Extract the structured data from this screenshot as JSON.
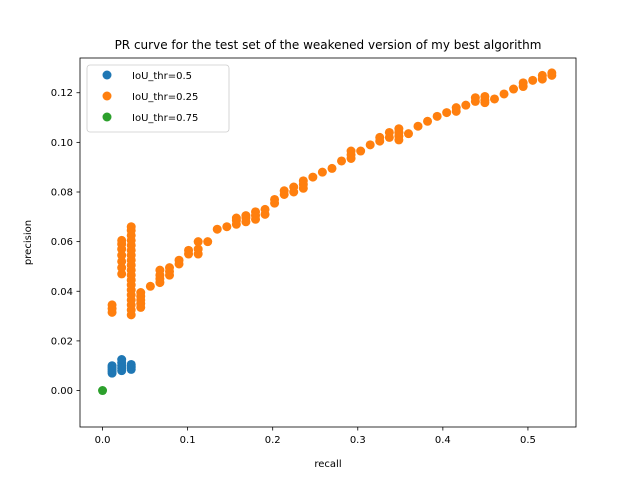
{
  "chart_data": {
    "type": "scatter",
    "title": "PR curve for the test set of the weakened version of my best algorithm",
    "xlabel": "recall",
    "ylabel": "precision",
    "xlim": [
      -0.0265,
      0.5565
    ],
    "ylim": [
      -0.0147,
      0.134
    ],
    "x_ticks": [
      0.0,
      0.1,
      0.2,
      0.3,
      0.4,
      0.5
    ],
    "x_tick_labels": [
      "0.0",
      "0.1",
      "0.2",
      "0.3",
      "0.4",
      "0.5"
    ],
    "y_ticks": [
      0.0,
      0.02,
      0.04,
      0.06,
      0.08,
      0.1,
      0.12
    ],
    "y_tick_labels": [
      "0.00",
      "0.02",
      "0.04",
      "0.06",
      "0.08",
      "0.10",
      "0.12"
    ],
    "grid": false,
    "legend": "top-left",
    "series": [
      {
        "name": "IoU_thr=0.5",
        "color": "#1f77b4",
        "x": [
          0.0112,
          0.0112,
          0.0112,
          0.0112,
          0.0112,
          0.0225,
          0.0225,
          0.0225,
          0.0225,
          0.0225,
          0.0337,
          0.0337,
          0.0337,
          0.0337
        ],
        "y": [
          0.007,
          0.0078,
          0.0086,
          0.0094,
          0.01,
          0.008,
          0.009,
          0.01,
          0.0112,
          0.0125,
          0.0085,
          0.0092,
          0.0098,
          0.0105
        ]
      },
      {
        "name": "IoU_thr=0.25",
        "color": "#ff7f0e",
        "x": [
          0.0112,
          0.0112,
          0.0112,
          0.0225,
          0.0225,
          0.0225,
          0.0225,
          0.0225,
          0.0225,
          0.0225,
          0.0337,
          0.0337,
          0.0337,
          0.0337,
          0.0337,
          0.0337,
          0.0337,
          0.0337,
          0.0337,
          0.0337,
          0.0337,
          0.0337,
          0.0337,
          0.0337,
          0.0337,
          0.0337,
          0.0337,
          0.0337,
          0.0337,
          0.0449,
          0.0449,
          0.0449,
          0.0449,
          0.0449,
          0.0562,
          0.0674,
          0.0674,
          0.0674,
          0.0674,
          0.0787,
          0.0787,
          0.0787,
          0.0899,
          0.0899,
          0.1011,
          0.1011,
          0.1124,
          0.1124,
          0.1124,
          0.1236,
          0.1348,
          0.1461,
          0.1573,
          0.1573,
          0.1573,
          0.1685,
          0.1685,
          0.1685,
          0.1798,
          0.1798,
          0.1798,
          0.191,
          0.191,
          0.2022,
          0.2022,
          0.2135,
          0.2135,
          0.2247,
          0.2247,
          0.236,
          0.236,
          0.236,
          0.2472,
          0.2584,
          0.2697,
          0.2809,
          0.2921,
          0.2921,
          0.2921,
          0.3034,
          0.3146,
          0.3258,
          0.3258,
          0.3371,
          0.3371,
          0.3483,
          0.3483,
          0.3483,
          0.3483,
          0.3483,
          0.3596,
          0.3708,
          0.382,
          0.3933,
          0.4045,
          0.4157,
          0.4157,
          0.427,
          0.4382,
          0.4382,
          0.4494,
          0.4494,
          0.4494,
          0.4607,
          0.4719,
          0.4831,
          0.4944,
          0.4944,
          0.5056,
          0.5169,
          0.5169,
          0.5281,
          0.5281
        ],
        "y": [
          0.0315,
          0.033,
          0.0345,
          0.047,
          0.0495,
          0.052,
          0.0545,
          0.057,
          0.059,
          0.0605,
          0.0305,
          0.0325,
          0.0345,
          0.0365,
          0.0385,
          0.0405,
          0.0425,
          0.0445,
          0.0465,
          0.0485,
          0.0505,
          0.0525,
          0.0545,
          0.0565,
          0.0585,
          0.0605,
          0.0625,
          0.0645,
          0.066,
          0.0335,
          0.035,
          0.0365,
          0.038,
          0.0395,
          0.042,
          0.0435,
          0.045,
          0.0465,
          0.0485,
          0.0465,
          0.048,
          0.0495,
          0.051,
          0.0525,
          0.055,
          0.0565,
          0.055,
          0.057,
          0.06,
          0.06,
          0.065,
          0.066,
          0.067,
          0.0685,
          0.0695,
          0.068,
          0.0695,
          0.0705,
          0.069,
          0.0705,
          0.072,
          0.071,
          0.073,
          0.0755,
          0.077,
          0.079,
          0.0805,
          0.08,
          0.082,
          0.0815,
          0.083,
          0.0845,
          0.086,
          0.088,
          0.0895,
          0.0925,
          0.0935,
          0.095,
          0.0965,
          0.0965,
          0.099,
          0.1005,
          0.102,
          0.102,
          0.104,
          0.101,
          0.1025,
          0.104,
          0.1055,
          0.104,
          0.1035,
          0.1065,
          0.1085,
          0.1105,
          0.112,
          0.1125,
          0.114,
          0.115,
          0.1165,
          0.118,
          0.117,
          0.116,
          0.1185,
          0.1175,
          0.1195,
          0.1215,
          0.1225,
          0.124,
          0.125,
          0.1255,
          0.127,
          0.127,
          0.128
        ]
      },
      {
        "name": "IoU_thr=0.75",
        "color": "#2ca02c",
        "x": [
          0.0
        ],
        "y": [
          0.0
        ]
      }
    ]
  }
}
